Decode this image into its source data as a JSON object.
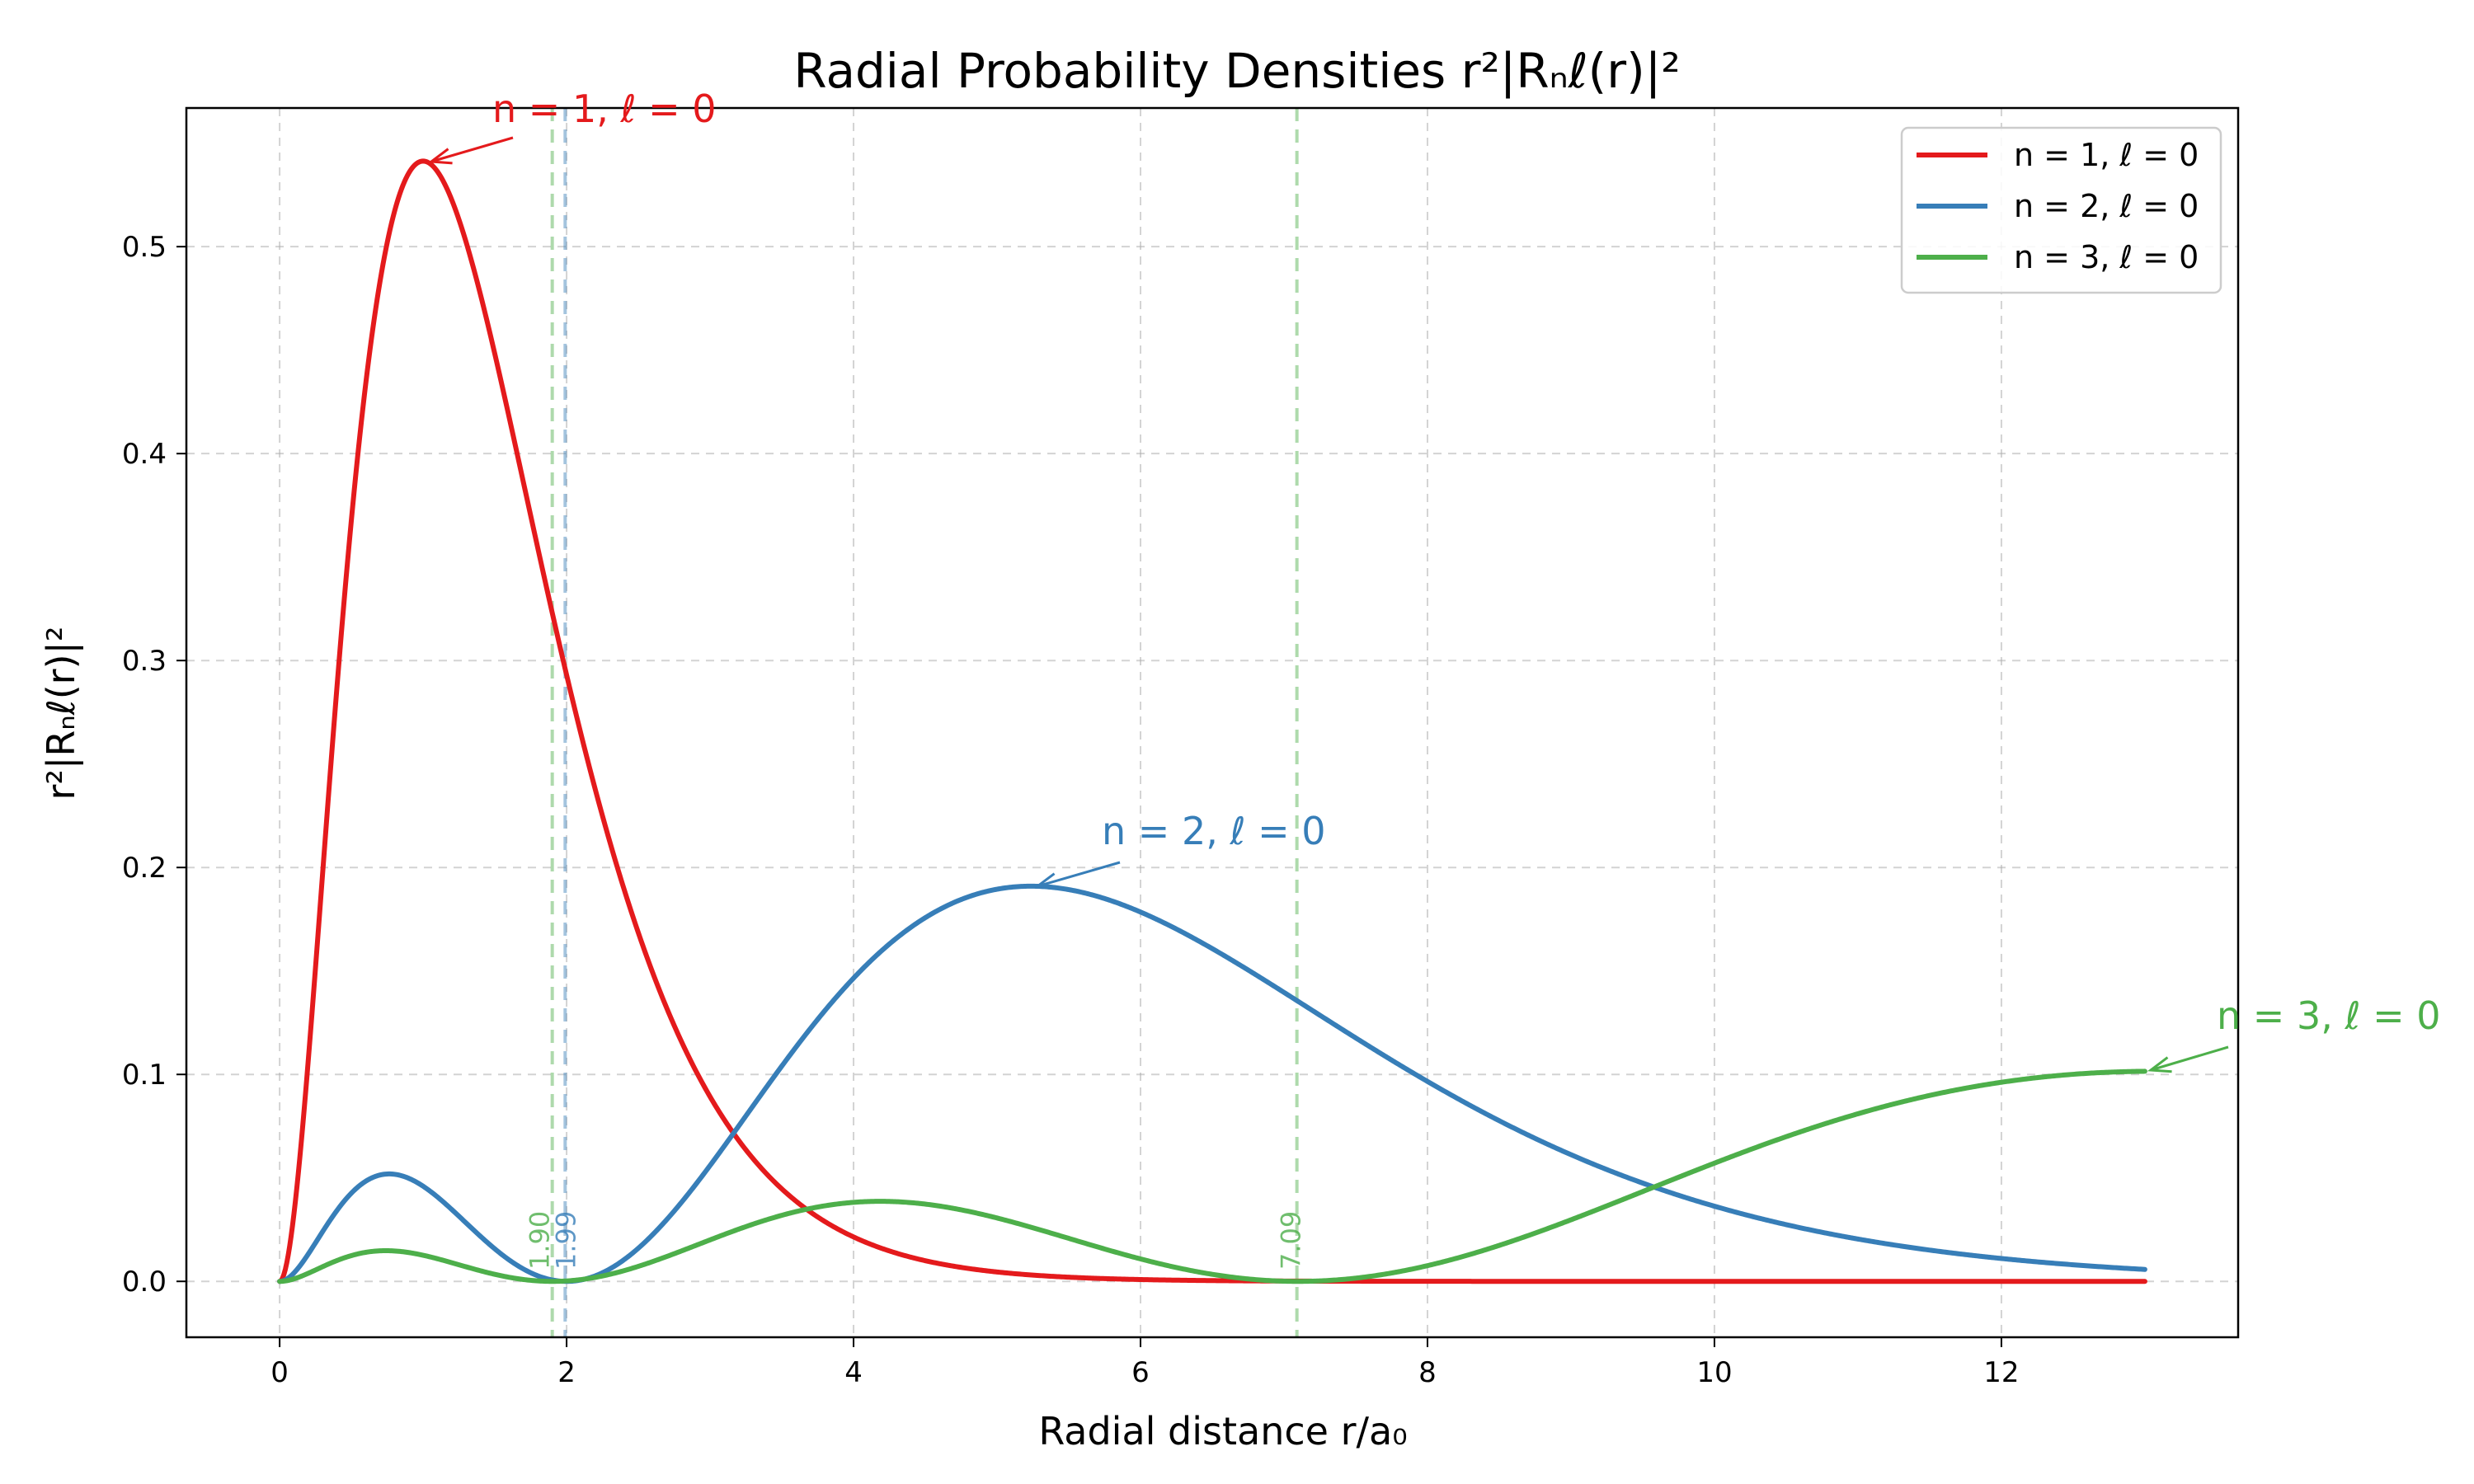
{
  "chart_data": {
    "type": "line",
    "title": "Radial Probability Densities r²|Rₙℓ(r)|²",
    "xlabel": "Radial distance r/a₀",
    "ylabel": "r²|Rₙℓ(r)|²",
    "xlim": [
      -0.65,
      13.65
    ],
    "ylim": [
      -0.027,
      0.567
    ],
    "x_ticks": [
      0,
      2,
      4,
      6,
      8,
      10,
      12
    ],
    "y_ticks": [
      0.0,
      0.1,
      0.2,
      0.3,
      0.4,
      0.5
    ],
    "x_tick_labels": [
      "0",
      "2",
      "4",
      "6",
      "8",
      "10",
      "12"
    ],
    "y_tick_labels": [
      "0.0",
      "0.1",
      "0.2",
      "0.3",
      "0.4",
      "0.5"
    ],
    "grid": true,
    "legend_position": "top-right",
    "x_range": [
      0,
      13
    ],
    "series": [
      {
        "name": "n = 1,  ℓ = 0",
        "n": 1,
        "l": 0,
        "color": "#e41a1c",
        "peak": {
          "x": 1.0,
          "y": 0.541
        },
        "annotation": "n = 1,  ℓ = 0"
      },
      {
        "name": "n = 2,  ℓ = 0",
        "n": 2,
        "l": 0,
        "color": "#377eb8",
        "peak": {
          "x": 5.24,
          "y": 0.191
        },
        "annotation": "n = 2,  ℓ = 0"
      },
      {
        "name": "n = 3,  ℓ = 0",
        "n": 3,
        "l": 0,
        "color": "#4daf4a",
        "peak": {
          "x": 13.0,
          "y": 0.101
        },
        "annotation": "n = 3,  ℓ = 0"
      }
    ],
    "nodes": [
      {
        "x": 1.9,
        "label": "1.90",
        "color": "#4daf4a"
      },
      {
        "x": 1.99,
        "label": "1.99",
        "color": "#377eb8"
      },
      {
        "x": 7.09,
        "label": "7.09",
        "color": "#4daf4a"
      }
    ]
  }
}
